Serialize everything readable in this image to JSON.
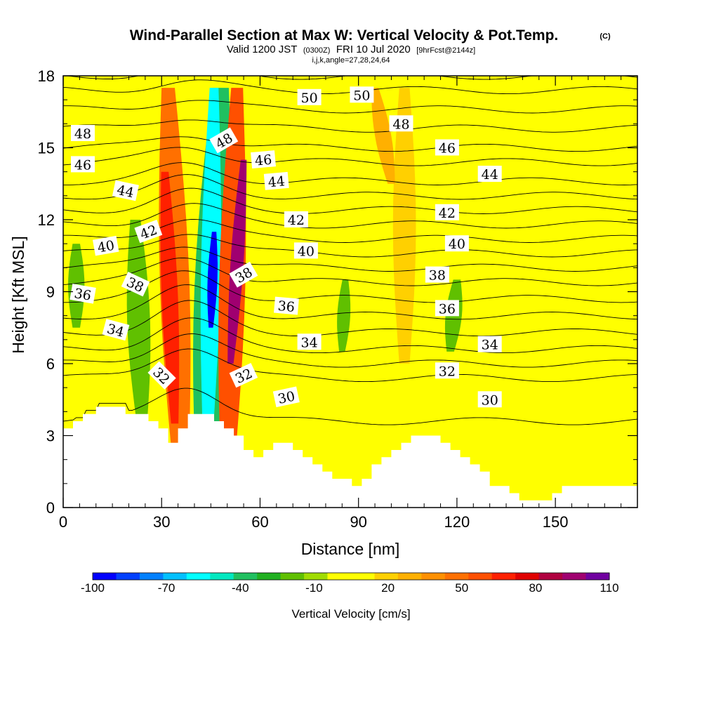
{
  "chart_data": {
    "type": "heatmap",
    "title": "Wind-Parallel Section at Max W: Vertical Velocity & Pot.Temp.",
    "title_mark": "(C)",
    "subtitle": {
      "prefix": "Valid 1200 JST",
      "utc": "(0300Z)",
      "date": "FRI 10 Jul 2020",
      "forecast": "[9hrFcst@2144z]"
    },
    "meta": "i,j,k,angle=27,28,24,64",
    "xlabel": "Distance [nm]",
    "ylabel": "Height [Kft MSL]",
    "xlim": [
      0,
      175
    ],
    "ylim": [
      0,
      18
    ],
    "x_ticks": [
      "0",
      "30",
      "60",
      "90",
      "120",
      "150"
    ],
    "x_tick_values": [
      0,
      30,
      60,
      90,
      120,
      150
    ],
    "y_ticks": [
      "0",
      "3",
      "6",
      "9",
      "12",
      "15",
      "18"
    ],
    "y_tick_values": [
      0,
      3,
      6,
      9,
      12,
      15,
      18
    ],
    "colorbar": {
      "title": "Vertical Velocity [cm/s]",
      "labels": [
        "-100",
        "-70",
        "-40",
        "-10",
        "20",
        "50",
        "80",
        "110"
      ],
      "levels": [
        -100,
        -90,
        -80,
        -70,
        -60,
        -50,
        -40,
        -30,
        -20,
        -10,
        0,
        10,
        20,
        30,
        40,
        50,
        60,
        70,
        80,
        90,
        100,
        110
      ],
      "colors": [
        "#0000ff",
        "#0040ff",
        "#0080ff",
        "#00c0ff",
        "#00ffff",
        "#00e8c0",
        "#20c060",
        "#20b020",
        "#60c000",
        "#a0dc00",
        "#ffff00",
        "#ffff00",
        "#ffd000",
        "#ffb000",
        "#ff9000",
        "#ff7000",
        "#ff5000",
        "#ff2000",
        "#e00000",
        "#b00040",
        "#a00070",
        "#7000a0"
      ]
    },
    "shading": {
      "field": "Vertical Velocity [cm/s]",
      "background_value": 10,
      "features": [
        {
          "type": "band",
          "x_center": [
            43,
            48
          ],
          "height": [
            0.8,
            17.5
          ],
          "half_width": 5.5,
          "value": -40
        },
        {
          "type": "band",
          "x_center": [
            44,
            46
          ],
          "height": [
            2.5,
            17.5
          ],
          "half_width": 3.0,
          "value": -60
        },
        {
          "type": "band",
          "x_center": [
            45,
            46
          ],
          "height": [
            7.5,
            11.5
          ],
          "half_width": 1.5,
          "value": -100
        },
        {
          "type": "band",
          "x_center": [
            36,
            32
          ],
          "height": [
            1.0,
            17.5
          ],
          "half_width": 4.5,
          "value": 50
        },
        {
          "type": "band",
          "x_center": [
            34,
            31
          ],
          "height": [
            3.5,
            14.0
          ],
          "half_width": 2.5,
          "value": 70
        },
        {
          "type": "band",
          "x_center": [
            50,
            53
          ],
          "height": [
            1.0,
            17.5
          ],
          "half_width": 4.0,
          "value": 60
        },
        {
          "type": "band",
          "x_center": [
            51,
            55
          ],
          "height": [
            6.0,
            14.5
          ],
          "half_width": 2.0,
          "value": 100
        },
        {
          "type": "band",
          "x_center": [
            24,
            22
          ],
          "height": [
            3.5,
            12.0
          ],
          "half_width": 3.5,
          "value": -20
        },
        {
          "type": "band",
          "x_center": [
            4,
            4
          ],
          "height": [
            7.5,
            11.0
          ],
          "half_width": 2.5,
          "value": -20
        },
        {
          "type": "band",
          "x_center": [
            85,
            86
          ],
          "height": [
            6.5,
            9.5
          ],
          "half_width": 2.0,
          "value": -20
        },
        {
          "type": "band",
          "x_center": [
            118,
            120
          ],
          "height": [
            6.5,
            9.5
          ],
          "half_width": 2.5,
          "value": -20
        },
        {
          "type": "band",
          "x_center": [
            104,
            104
          ],
          "height": [
            6.0,
            17.5
          ],
          "half_width": 3.5,
          "value": 20
        },
        {
          "type": "band",
          "x_center": [
            100,
            95
          ],
          "height": [
            13.5,
            17.5
          ],
          "half_width": 2.5,
          "value": 30
        }
      ]
    },
    "terrain": [
      {
        "x": 0,
        "h": 3.3
      },
      {
        "x": 3,
        "h": 3.6
      },
      {
        "x": 6,
        "h": 3.9
      },
      {
        "x": 10,
        "h": 4.2
      },
      {
        "x": 19,
        "h": 3.9
      },
      {
        "x": 26,
        "h": 3.6
      },
      {
        "x": 29,
        "h": 3.3
      },
      {
        "x": 32,
        "h": 2.7
      },
      {
        "x": 35,
        "h": 3.3
      },
      {
        "x": 38,
        "h": 3.9
      },
      {
        "x": 46,
        "h": 3.6
      },
      {
        "x": 49,
        "h": 3.3
      },
      {
        "x": 52,
        "h": 3.0
      },
      {
        "x": 55,
        "h": 2.4
      },
      {
        "x": 58,
        "h": 2.1
      },
      {
        "x": 61,
        "h": 2.4
      },
      {
        "x": 64,
        "h": 2.7
      },
      {
        "x": 70,
        "h": 2.4
      },
      {
        "x": 73,
        "h": 2.1
      },
      {
        "x": 76,
        "h": 1.8
      },
      {
        "x": 79,
        "h": 1.5
      },
      {
        "x": 82,
        "h": 1.2
      },
      {
        "x": 88,
        "h": 0.9
      },
      {
        "x": 91,
        "h": 1.2
      },
      {
        "x": 94,
        "h": 1.8
      },
      {
        "x": 97,
        "h": 2.1
      },
      {
        "x": 100,
        "h": 2.4
      },
      {
        "x": 103,
        "h": 2.7
      },
      {
        "x": 106,
        "h": 3.0
      },
      {
        "x": 115,
        "h": 2.7
      },
      {
        "x": 118,
        "h": 2.4
      },
      {
        "x": 121,
        "h": 2.1
      },
      {
        "x": 124,
        "h": 1.8
      },
      {
        "x": 127,
        "h": 1.5
      },
      {
        "x": 130,
        "h": 0.9
      },
      {
        "x": 136,
        "h": 0.6
      },
      {
        "x": 139,
        "h": 0.3
      },
      {
        "x": 149,
        "h": 0.6
      },
      {
        "x": 152,
        "h": 0.9
      },
      {
        "x": 175,
        "h": 1.0
      }
    ],
    "isentropes": {
      "field": "Pot.Temp.",
      "levels": [
        30,
        31,
        32,
        33,
        34,
        35,
        36,
        37,
        38,
        39,
        40,
        41,
        42,
        43,
        44,
        45,
        46,
        47,
        48,
        49,
        50
      ],
      "level_heights": [
        3.6,
        5.4,
        6.0,
        6.6,
        7.3,
        8.0,
        8.7,
        9.4,
        10.0,
        10.6,
        11.2,
        11.8,
        12.4,
        13.0,
        13.6,
        14.4,
        15.0,
        15.8,
        16.6,
        17.4,
        18.0
      ],
      "perturbation": {
        "x_center": 38,
        "amplitude_kft": 1.8,
        "width_nm": 14
      },
      "labels": [
        {
          "text": "30",
          "x": 68,
          "h": 4.6,
          "angle": -12
        },
        {
          "text": "30",
          "x": 130,
          "h": 4.5,
          "angle": 0
        },
        {
          "text": "32",
          "x": 30,
          "h": 5.5,
          "angle": 45
        },
        {
          "text": "32",
          "x": 55,
          "h": 5.5,
          "angle": -25
        },
        {
          "text": "32",
          "x": 117,
          "h": 5.7,
          "angle": 0
        },
        {
          "text": "34",
          "x": 16,
          "h": 7.4,
          "angle": 15
        },
        {
          "text": "34",
          "x": 75,
          "h": 6.9,
          "angle": 0
        },
        {
          "text": "34",
          "x": 130,
          "h": 6.8,
          "angle": 0
        },
        {
          "text": "36",
          "x": 6,
          "h": 8.9,
          "angle": 10
        },
        {
          "text": "36",
          "x": 68,
          "h": 8.4,
          "angle": 5
        },
        {
          "text": "36",
          "x": 117,
          "h": 8.3,
          "angle": 0
        },
        {
          "text": "38",
          "x": 22,
          "h": 9.3,
          "angle": 25
        },
        {
          "text": "38",
          "x": 55,
          "h": 9.7,
          "angle": -30
        },
        {
          "text": "38",
          "x": 114,
          "h": 9.7,
          "angle": 0
        },
        {
          "text": "40",
          "x": 13,
          "h": 10.9,
          "angle": -10
        },
        {
          "text": "40",
          "x": 74,
          "h": 10.7,
          "angle": 0
        },
        {
          "text": "40",
          "x": 120,
          "h": 11.0,
          "angle": 0
        },
        {
          "text": "42",
          "x": 26,
          "h": 11.5,
          "angle": -20
        },
        {
          "text": "42",
          "x": 71,
          "h": 12.0,
          "angle": 0
        },
        {
          "text": "42",
          "x": 117,
          "h": 12.3,
          "angle": 0
        },
        {
          "text": "44",
          "x": 19,
          "h": 13.2,
          "angle": 12
        },
        {
          "text": "44",
          "x": 65,
          "h": 13.6,
          "angle": -5
        },
        {
          "text": "44",
          "x": 130,
          "h": 13.9,
          "angle": 0
        },
        {
          "text": "46",
          "x": 6,
          "h": 14.3,
          "angle": 0
        },
        {
          "text": "46",
          "x": 61,
          "h": 14.5,
          "angle": -5
        },
        {
          "text": "46",
          "x": 117,
          "h": 15.0,
          "angle": 0
        },
        {
          "text": "48",
          "x": 6,
          "h": 15.6,
          "angle": 0
        },
        {
          "text": "48",
          "x": 49,
          "h": 15.3,
          "angle": -30
        },
        {
          "text": "48",
          "x": 103,
          "h": 16.0,
          "angle": 0
        },
        {
          "text": "50",
          "x": 75,
          "h": 17.1,
          "angle": 0
        },
        {
          "text": "50",
          "x": 91,
          "h": 17.2,
          "angle": 0
        }
      ]
    }
  }
}
